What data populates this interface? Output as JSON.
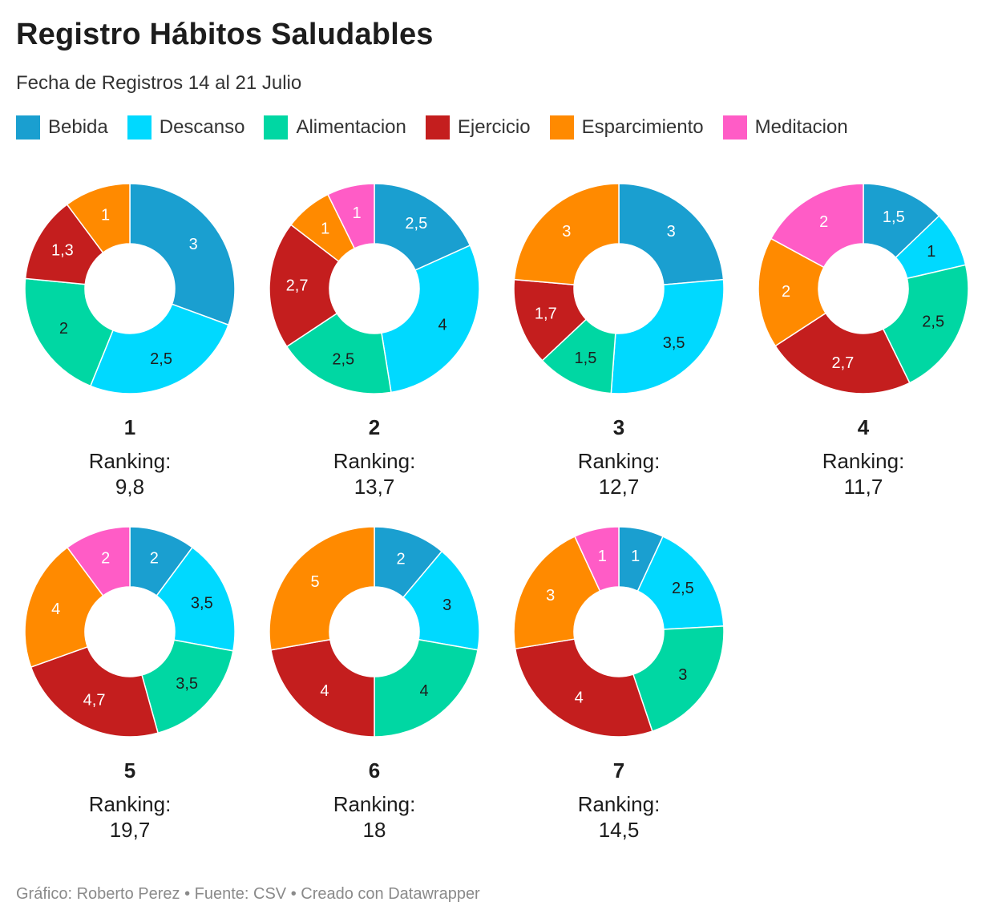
{
  "chart_data": {
    "type": "pie",
    "title": "Registro Hábitos Saludables",
    "subtitle": "Fecha de Registros 14 al 21 Julio",
    "footer": "Gráfico: Roberto Perez • Fuente: CSV • Creado con Datawrapper",
    "ranking_label": "Ranking:",
    "legend": [
      {
        "name": "Bebida",
        "color": "#1a9fd0"
      },
      {
        "name": "Descanso",
        "color": "#00d9ff"
      },
      {
        "name": "Alimentacion",
        "color": "#00d7a3"
      },
      {
        "name": "Ejercicio",
        "color": "#c41e1e"
      },
      {
        "name": "Esparcimiento",
        "color": "#ff8a00"
      },
      {
        "name": "Meditacion",
        "color": "#ff5cc6"
      }
    ],
    "charts": [
      {
        "label": "1",
        "ranking": "9,8",
        "slices": [
          {
            "category": "Bebida",
            "value": 3,
            "label": "3"
          },
          {
            "category": "Descanso",
            "value": 2.5,
            "label": "2,5"
          },
          {
            "category": "Alimentacion",
            "value": 2,
            "label": "2"
          },
          {
            "category": "Ejercicio",
            "value": 1.3,
            "label": "1,3"
          },
          {
            "category": "Esparcimiento",
            "value": 1,
            "label": "1"
          }
        ]
      },
      {
        "label": "2",
        "ranking": "13,7",
        "slices": [
          {
            "category": "Bebida",
            "value": 2.5,
            "label": "2,5"
          },
          {
            "category": "Descanso",
            "value": 4,
            "label": "4"
          },
          {
            "category": "Alimentacion",
            "value": 2.5,
            "label": "2,5"
          },
          {
            "category": "Ejercicio",
            "value": 2.7,
            "label": "2,7"
          },
          {
            "category": "Esparcimiento",
            "value": 1,
            "label": "1"
          },
          {
            "category": "Meditacion",
            "value": 1,
            "label": "1"
          }
        ]
      },
      {
        "label": "3",
        "ranking": "12,7",
        "slices": [
          {
            "category": "Bebida",
            "value": 3,
            "label": "3"
          },
          {
            "category": "Descanso",
            "value": 3.5,
            "label": "3,5"
          },
          {
            "category": "Alimentacion",
            "value": 1.5,
            "label": "1,5"
          },
          {
            "category": "Ejercicio",
            "value": 1.7,
            "label": "1,7"
          },
          {
            "category": "Esparcimiento",
            "value": 3,
            "label": "3"
          }
        ]
      },
      {
        "label": "4",
        "ranking": "11,7",
        "slices": [
          {
            "category": "Bebida",
            "value": 1.5,
            "label": "1,5"
          },
          {
            "category": "Descanso",
            "value": 1,
            "label": "1"
          },
          {
            "category": "Alimentacion",
            "value": 2.5,
            "label": "2,5"
          },
          {
            "category": "Ejercicio",
            "value": 2.7,
            "label": "2,7"
          },
          {
            "category": "Esparcimiento",
            "value": 2,
            "label": "2"
          },
          {
            "category": "Meditacion",
            "value": 2,
            "label": "2"
          }
        ]
      },
      {
        "label": "5",
        "ranking": "19,7",
        "slices": [
          {
            "category": "Bebida",
            "value": 2,
            "label": "2"
          },
          {
            "category": "Descanso",
            "value": 3.5,
            "label": "3,5"
          },
          {
            "category": "Alimentacion",
            "value": 3.5,
            "label": "3,5"
          },
          {
            "category": "Ejercicio",
            "value": 4.7,
            "label": "4,7"
          },
          {
            "category": "Esparcimiento",
            "value": 4,
            "label": "4"
          },
          {
            "category": "Meditacion",
            "value": 2,
            "label": "2"
          }
        ]
      },
      {
        "label": "6",
        "ranking": "18",
        "slices": [
          {
            "category": "Bebida",
            "value": 2,
            "label": "2"
          },
          {
            "category": "Descanso",
            "value": 3,
            "label": "3"
          },
          {
            "category": "Alimentacion",
            "value": 4,
            "label": "4"
          },
          {
            "category": "Ejercicio",
            "value": 4,
            "label": "4"
          },
          {
            "category": "Esparcimiento",
            "value": 5,
            "label": "5"
          }
        ]
      },
      {
        "label": "7",
        "ranking": "14,5",
        "slices": [
          {
            "category": "Bebida",
            "value": 1,
            "label": "1"
          },
          {
            "category": "Descanso",
            "value": 2.5,
            "label": "2,5"
          },
          {
            "category": "Alimentacion",
            "value": 3,
            "label": "3"
          },
          {
            "category": "Ejercicio",
            "value": 4,
            "label": "4"
          },
          {
            "category": "Esparcimiento",
            "value": 3,
            "label": "3"
          },
          {
            "category": "Meditacion",
            "value": 1,
            "label": "1"
          }
        ]
      }
    ]
  }
}
